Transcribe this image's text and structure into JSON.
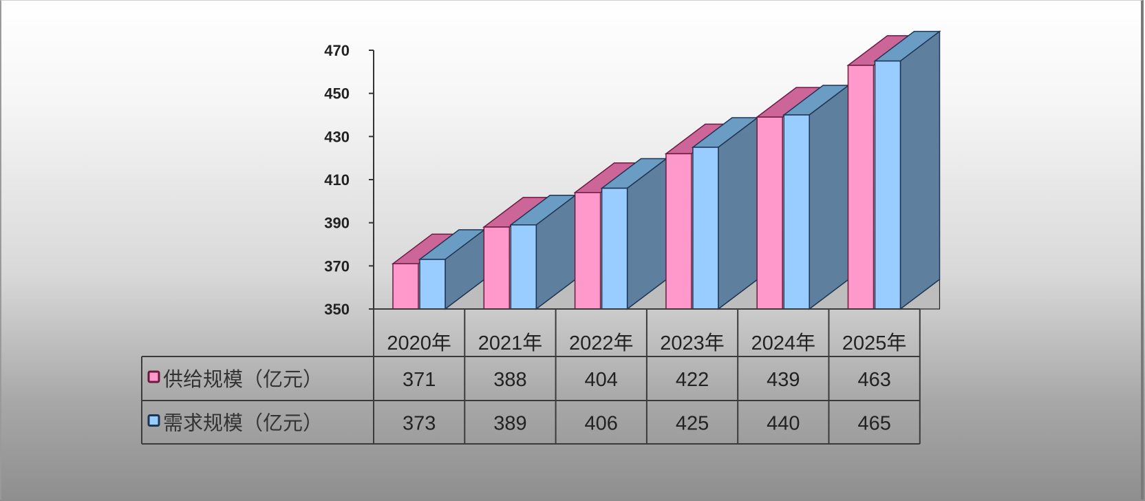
{
  "chart_data": {
    "type": "bar",
    "subtype": "3d-clustered-column-with-data-table",
    "title": "",
    "xlabel": "",
    "ylabel": "",
    "categories": [
      "2020年",
      "2021年",
      "2022年",
      "2023年",
      "2024年",
      "2025年"
    ],
    "series": [
      {
        "name": "供给规模（亿元）",
        "color": "#ff99cc",
        "values": [
          371,
          388,
          404,
          422,
          439,
          463
        ]
      },
      {
        "name": "需求规模（亿元）",
        "color": "#99ccff",
        "values": [
          373,
          389,
          406,
          425,
          440,
          465
        ]
      }
    ],
    "ylim": [
      350,
      470
    ],
    "yticks": [
      350,
      370,
      390,
      410,
      430,
      450,
      470
    ],
    "grid": false,
    "legend_position": "data-table-left",
    "data_table": true
  },
  "colors": {
    "supply_front": "#ff99cc",
    "supply_top": "#cc6699",
    "demand_front": "#99ccff",
    "demand_top": "#6a9cc4",
    "demand_side": "#5f7f9f",
    "outline_supply": "#6b1a3e",
    "outline_demand": "#1c3553",
    "axis": "#333333",
    "table_border": "#3a3a3a"
  }
}
